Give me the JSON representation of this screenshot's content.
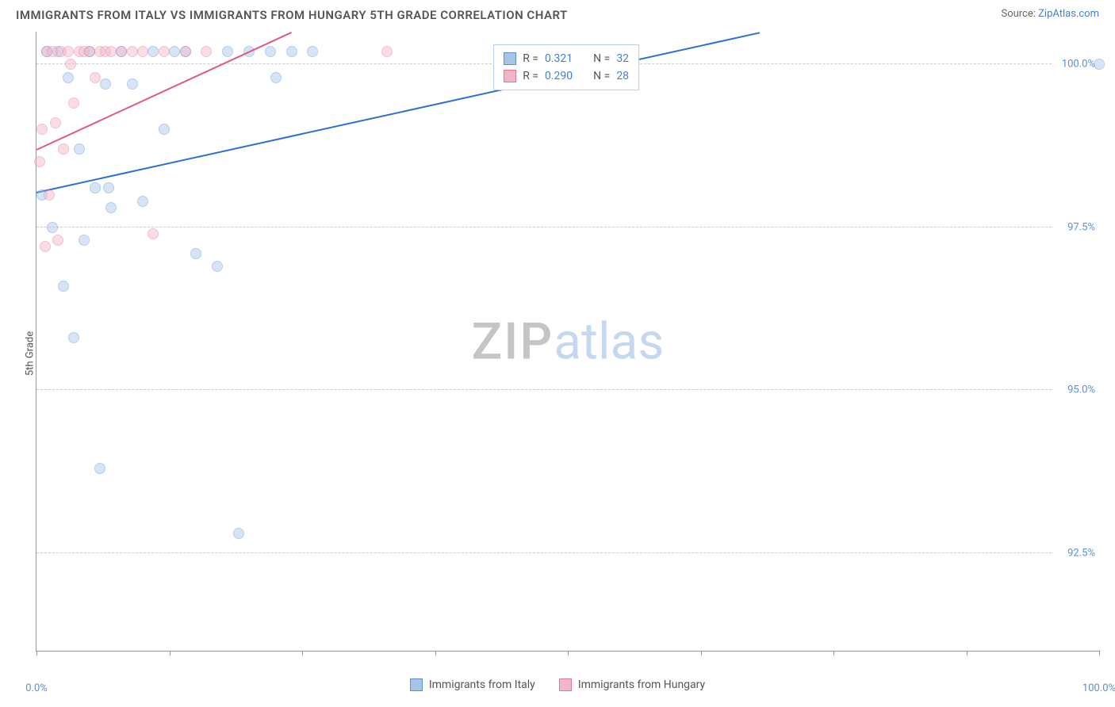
{
  "header": {
    "title": "IMMIGRANTS FROM ITALY VS IMMIGRANTS FROM HUNGARY 5TH GRADE CORRELATION CHART",
    "source_prefix": "Source: ",
    "source_link": "ZipAtlas.com"
  },
  "ylabel": "5th Grade",
  "chart": {
    "type": "scatter",
    "background_color": "#ffffff",
    "grid_color": "#cccccc",
    "axis_color": "#999999",
    "xlim": [
      0,
      100
    ],
    "ylim": [
      91.0,
      100.5
    ],
    "yticks": [
      {
        "v": 100.0,
        "label": "100.0%"
      },
      {
        "v": 97.5,
        "label": "97.5%"
      },
      {
        "v": 95.0,
        "label": "95.0%"
      },
      {
        "v": 92.5,
        "label": "92.5%"
      }
    ],
    "xtick_positions": [
      0,
      12.5,
      25,
      37.5,
      50,
      62.5,
      75,
      87.5,
      100
    ],
    "xtick_labels": [
      {
        "v": 0,
        "label": "0.0%"
      },
      {
        "v": 100,
        "label": "100.0%"
      }
    ],
    "marker_radius": 7,
    "marker_opacity": 0.45,
    "series": [
      {
        "name": "Immigrants from Italy",
        "color_fill": "#a8c5e8",
        "color_stroke": "#5b8fd9",
        "r_label": "R =",
        "r_value": "0.321",
        "n_label": "N =",
        "n_value": "32",
        "trend": {
          "x1": 0,
          "y1": 98.05,
          "x2": 68,
          "y2": 100.5,
          "color": "#2f6fd0",
          "width": 2
        },
        "points": [
          {
            "x": 0.5,
            "y": 98.0
          },
          {
            "x": 1.0,
            "y": 100.2
          },
          {
            "x": 1.5,
            "y": 97.5
          },
          {
            "x": 2.0,
            "y": 100.2
          },
          {
            "x": 2.5,
            "y": 96.6
          },
          {
            "x": 3.0,
            "y": 99.8
          },
          {
            "x": 3.5,
            "y": 95.8
          },
          {
            "x": 4.0,
            "y": 98.7
          },
          {
            "x": 4.5,
            "y": 97.3
          },
          {
            "x": 5.0,
            "y": 100.2
          },
          {
            "x": 6.0,
            "y": 93.8
          },
          {
            "x": 6.5,
            "y": 99.7
          },
          {
            "x": 7.0,
            "y": 97.8
          },
          {
            "x": 8.0,
            "y": 100.2
          },
          {
            "x": 9.0,
            "y": 99.7
          },
          {
            "x": 10.0,
            "y": 97.9
          },
          {
            "x": 11.0,
            "y": 100.2
          },
          {
            "x": 12.0,
            "y": 99.0
          },
          {
            "x": 13.0,
            "y": 100.2
          },
          {
            "x": 14.0,
            "y": 100.2
          },
          {
            "x": 15.0,
            "y": 97.1
          },
          {
            "x": 17.0,
            "y": 96.9
          },
          {
            "x": 18.0,
            "y": 100.2
          },
          {
            "x": 19.0,
            "y": 92.8
          },
          {
            "x": 20.0,
            "y": 100.2
          },
          {
            "x": 22.0,
            "y": 100.2
          },
          {
            "x": 24.0,
            "y": 100.2
          },
          {
            "x": 26.0,
            "y": 100.2
          },
          {
            "x": 22.5,
            "y": 99.8
          },
          {
            "x": 5.5,
            "y": 98.1
          },
          {
            "x": 6.8,
            "y": 98.1
          },
          {
            "x": 100.0,
            "y": 100.0
          }
        ]
      },
      {
        "name": "Immigrants from Hungary",
        "color_fill": "#f2b6c6",
        "color_stroke": "#e17a9a",
        "r_label": "R =",
        "r_value": "0.290",
        "n_label": "N =",
        "n_value": "28",
        "trend": {
          "x1": 0,
          "y1": 98.7,
          "x2": 24,
          "y2": 100.5,
          "color": "#e05a85",
          "width": 2
        },
        "points": [
          {
            "x": 0.3,
            "y": 98.5
          },
          {
            "x": 0.5,
            "y": 99.0
          },
          {
            "x": 0.8,
            "y": 97.2
          },
          {
            "x": 1.0,
            "y": 100.2
          },
          {
            "x": 1.2,
            "y": 98.0
          },
          {
            "x": 1.5,
            "y": 100.2
          },
          {
            "x": 1.8,
            "y": 99.1
          },
          {
            "x": 2.0,
            "y": 97.3
          },
          {
            "x": 2.3,
            "y": 100.2
          },
          {
            "x": 2.5,
            "y": 98.7
          },
          {
            "x": 3.0,
            "y": 100.2
          },
          {
            "x": 3.2,
            "y": 100.0
          },
          {
            "x": 3.5,
            "y": 99.4
          },
          {
            "x": 4.0,
            "y": 100.2
          },
          {
            "x": 4.5,
            "y": 100.2
          },
          {
            "x": 5.0,
            "y": 100.2
          },
          {
            "x": 5.5,
            "y": 99.8
          },
          {
            "x": 6.0,
            "y": 100.2
          },
          {
            "x": 6.5,
            "y": 100.2
          },
          {
            "x": 7.0,
            "y": 100.2
          },
          {
            "x": 8.0,
            "y": 100.2
          },
          {
            "x": 9.0,
            "y": 100.2
          },
          {
            "x": 10.0,
            "y": 100.2
          },
          {
            "x": 11.0,
            "y": 97.4
          },
          {
            "x": 12.0,
            "y": 100.2
          },
          {
            "x": 14.0,
            "y": 100.2
          },
          {
            "x": 16.0,
            "y": 100.2
          },
          {
            "x": 33.0,
            "y": 100.2
          }
        ]
      }
    ]
  },
  "watermark": {
    "part1": "ZIP",
    "part2": "atlas"
  },
  "stats_box": {
    "left_pct": 43,
    "top_pct": 2
  }
}
